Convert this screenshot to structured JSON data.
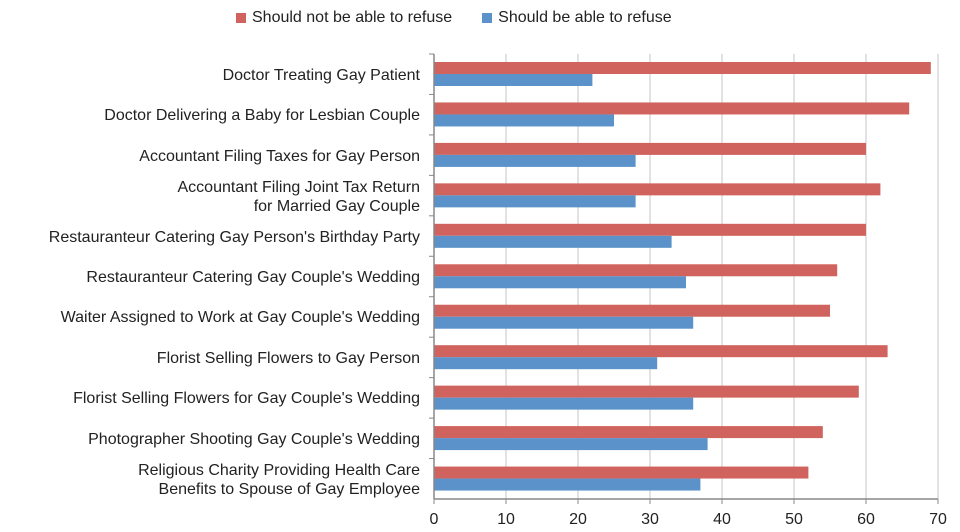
{
  "chart_data": {
    "type": "bar",
    "orientation": "horizontal",
    "categories": [
      "Doctor Treating Gay Patient",
      "Doctor Delivering a Baby for Lesbian Couple",
      "Accountant Filing Taxes for Gay Person",
      "Accountant Filing Joint Tax Return\nfor Married Gay Couple",
      "Restauranteur Catering Gay Person's Birthday Party",
      "Restauranteur Catering Gay Couple's Wedding",
      "Waiter Assigned to Work at Gay Couple's Wedding",
      "Florist Selling Flowers to Gay Person",
      "Florist Selling Flowers for Gay Couple's Wedding",
      "Photographer Shooting Gay Couple's Wedding",
      "Religious Charity Providing Health Care\nBenefits to Spouse of Gay Employee"
    ],
    "series": [
      {
        "name": "Should not be able to refuse",
        "color": "#d0635d",
        "values": [
          69,
          66,
          60,
          62,
          60,
          56,
          55,
          63,
          59,
          54,
          52
        ]
      },
      {
        "name": "Should be able to refuse",
        "color": "#5b92c9",
        "values": [
          22,
          25,
          28,
          28,
          33,
          35,
          36,
          31,
          36,
          38,
          37
        ]
      }
    ],
    "xlim": [
      0,
      70
    ],
    "xticks": [
      "0",
      "10",
      "20",
      "30",
      "40",
      "50",
      "60",
      "70"
    ],
    "grid": true,
    "legend": "top"
  }
}
